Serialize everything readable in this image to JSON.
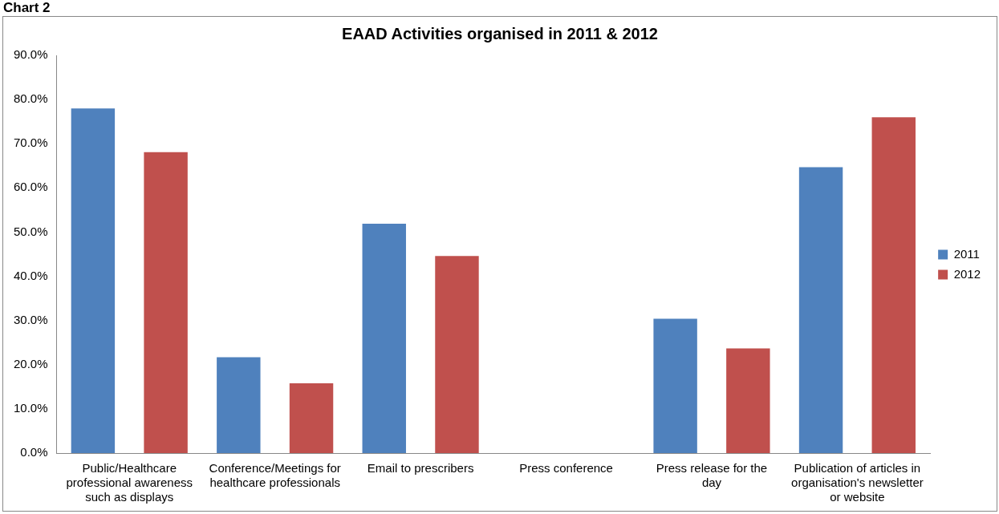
{
  "chart_data": {
    "type": "bar",
    "title": "EAAD Activities organised in 2011 & 2012",
    "annotations": [
      "Chart 2"
    ],
    "categories": [
      "Public/Healthcare professional awareness such as displays",
      "Conference/Meetings for healthcare professionals",
      "Email to prescribers",
      "Press conference",
      "Press release for the day",
      "Publication of articles in organisation's newsletter or website"
    ],
    "series": [
      {
        "name": "2011",
        "color": "#4f81bd",
        "values": [
          78.0,
          21.7,
          51.9,
          0,
          30.4,
          64.7
        ]
      },
      {
        "name": "2012",
        "color": "#c0504d",
        "values": [
          68.1,
          15.8,
          44.6,
          0,
          23.7,
          76.0
        ]
      }
    ],
    "ylim": [
      0,
      90
    ],
    "yticks": [
      {
        "value": 0,
        "label": "0.0%"
      },
      {
        "value": 10,
        "label": "10.0%"
      },
      {
        "value": 20,
        "label": "20.0%"
      },
      {
        "value": 30,
        "label": "30.0%"
      },
      {
        "value": 40,
        "label": "40.0%"
      },
      {
        "value": 50,
        "label": "50.0%"
      },
      {
        "value": 60,
        "label": "60.0%"
      },
      {
        "value": 70,
        "label": "70.0%"
      },
      {
        "value": 80,
        "label": "80.0%"
      },
      {
        "value": 90,
        "label": "90.0%"
      }
    ],
    "grid": false,
    "legend": "right"
  }
}
